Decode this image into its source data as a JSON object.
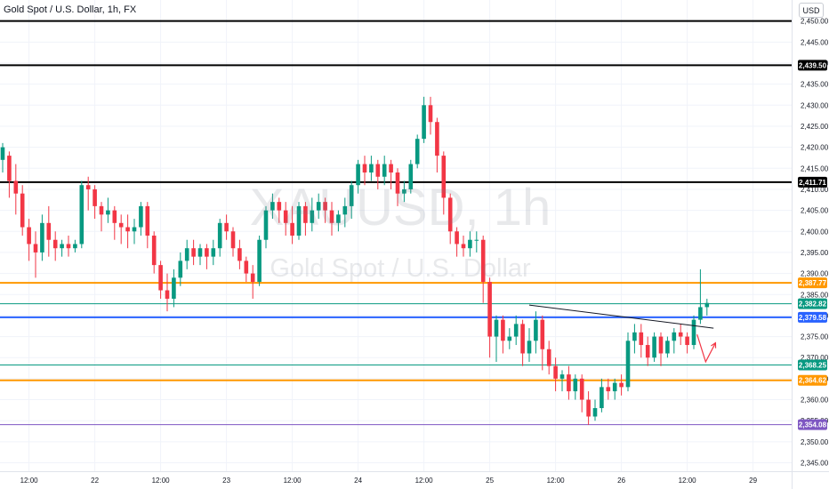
{
  "header": {
    "title": "Gold Spot / U.S. Dollar, 1h, FX"
  },
  "currency_label": "USD",
  "watermark": {
    "symbol": "XAUUSD, 1h",
    "name": "Gold Spot / U.S. Dollar"
  },
  "colors": {
    "up": "#089981",
    "down": "#f23645",
    "grid": "#f0f3fa",
    "axis_text": "#131722"
  },
  "chart_data": {
    "type": "candlestick",
    "title": "Gold Spot / U.S. Dollar, 1h, FX",
    "ylim": [
      2343,
      2455
    ],
    "y_ticks": [
      "2,345.00",
      "2,350.00",
      "2,355.00",
      "2,360.00",
      "2,365.00",
      "2,370.00",
      "2,375.00",
      "2,380.00",
      "2,385.00",
      "2,390.00",
      "2,395.00",
      "2,400.00",
      "2,405.00",
      "2,410.00",
      "2,415.00",
      "2,420.00",
      "2,425.00",
      "2,430.00",
      "2,435.00",
      "2,440.00",
      "2,445.00",
      "2,450.00"
    ],
    "x_ticks": [
      {
        "label": "12:00",
        "index": 4
      },
      {
        "label": "22",
        "index": 14
      },
      {
        "label": "12:00",
        "index": 24
      },
      {
        "label": "23",
        "index": 34
      },
      {
        "label": "12:00",
        "index": 44
      },
      {
        "label": "24",
        "index": 54
      },
      {
        "label": "12:00",
        "index": 64
      },
      {
        "label": "25",
        "index": 74
      },
      {
        "label": "12:00",
        "index": 84
      },
      {
        "label": "26",
        "index": 94
      },
      {
        "label": "12:00",
        "index": 104
      },
      {
        "label": "29",
        "index": 114
      }
    ],
    "candles": [
      [
        2417,
        2420,
        2414,
        2421
      ],
      [
        2418,
        2412,
        2408,
        2419
      ],
      [
        2412,
        2409,
        2404,
        2416
      ],
      [
        2409,
        2401,
        2399,
        2411
      ],
      [
        2401,
        2397,
        2393,
        2403
      ],
      [
        2397,
        2395,
        2389,
        2400
      ],
      [
        2395,
        2402,
        2393,
        2404
      ],
      [
        2402,
        2398,
        2394,
        2406
      ],
      [
        2398,
        2396,
        2393,
        2400
      ],
      [
        2396,
        2397,
        2394,
        2398
      ],
      [
        2397,
        2396,
        2394,
        2399
      ],
      [
        2396,
        2397,
        2395,
        2398
      ],
      [
        2397,
        2411,
        2396,
        2412
      ],
      [
        2411,
        2410,
        2405,
        2413
      ],
      [
        2410,
        2406,
        2403,
        2411
      ],
      [
        2406,
        2404,
        2400,
        2407
      ],
      [
        2404,
        2405,
        2402,
        2408
      ],
      [
        2405,
        2402,
        2398,
        2406
      ],
      [
        2402,
        2401,
        2397,
        2404
      ],
      [
        2401,
        2400,
        2396,
        2404
      ],
      [
        2400,
        2401,
        2397,
        2403
      ],
      [
        2401,
        2406,
        2399,
        2407
      ],
      [
        2406,
        2399,
        2396,
        2407
      ],
      [
        2399,
        2392,
        2390,
        2400
      ],
      [
        2392,
        2386,
        2384,
        2393
      ],
      [
        2386,
        2384,
        2381,
        2390
      ],
      [
        2384,
        2389,
        2382,
        2391
      ],
      [
        2389,
        2393,
        2387,
        2395
      ],
      [
        2393,
        2396,
        2391,
        2398
      ],
      [
        2396,
        2394,
        2392,
        2398
      ],
      [
        2394,
        2396,
        2392,
        2397
      ],
      [
        2396,
        2394,
        2391,
        2397
      ],
      [
        2394,
        2396,
        2392,
        2398
      ],
      [
        2396,
        2402,
        2394,
        2403
      ],
      [
        2402,
        2400,
        2398,
        2404
      ],
      [
        2400,
        2396,
        2394,
        2401
      ],
      [
        2396,
        2393,
        2391,
        2398
      ],
      [
        2393,
        2390,
        2388,
        2394
      ],
      [
        2390,
        2388,
        2384,
        2392
      ],
      [
        2388,
        2398,
        2387,
        2399
      ],
      [
        2398,
        2405,
        2396,
        2406
      ],
      [
        2405,
        2407,
        2403,
        2409
      ],
      [
        2407,
        2405,
        2402,
        2408
      ],
      [
        2405,
        2402,
        2399,
        2407
      ],
      [
        2402,
        2399,
        2397,
        2406
      ],
      [
        2399,
        2406,
        2398,
        2407
      ],
      [
        2406,
        2402,
        2399,
        2407
      ],
      [
        2402,
        2405,
        2400,
        2408
      ],
      [
        2405,
        2407,
        2403,
        2409
      ],
      [
        2407,
        2405,
        2402,
        2408
      ],
      [
        2405,
        2402,
        2399,
        2407
      ],
      [
        2402,
        2404,
        2400,
        2405
      ],
      [
        2404,
        2406,
        2401,
        2408
      ],
      [
        2406,
        2411,
        2403,
        2412
      ],
      [
        2411,
        2416,
        2409,
        2417
      ],
      [
        2416,
        2414,
        2411,
        2418
      ],
      [
        2414,
        2416,
        2412,
        2418
      ],
      [
        2416,
        2413,
        2410,
        2417
      ],
      [
        2413,
        2416,
        2411,
        2418
      ],
      [
        2416,
        2414,
        2410,
        2417
      ],
      [
        2414,
        2409,
        2406,
        2415
      ],
      [
        2409,
        2410,
        2407,
        2412
      ],
      [
        2410,
        2416,
        2409,
        2417
      ],
      [
        2416,
        2422,
        2415,
        2423
      ],
      [
        2422,
        2430,
        2421,
        2432
      ],
      [
        2430,
        2426,
        2423,
        2432
      ],
      [
        2426,
        2418,
        2414,
        2427
      ],
      [
        2418,
        2408,
        2404,
        2419
      ],
      [
        2408,
        2400,
        2397,
        2409
      ],
      [
        2400,
        2397,
        2394,
        2401
      ],
      [
        2397,
        2396,
        2394,
        2399
      ],
      [
        2396,
        2398,
        2394,
        2400
      ],
      [
        2398,
        2398,
        2395,
        2400
      ],
      [
        2398,
        2388,
        2383,
        2399
      ],
      [
        2388,
        2375,
        2370,
        2389
      ],
      [
        2375,
        2379,
        2369,
        2380
      ],
      [
        2379,
        2374,
        2371,
        2380
      ],
      [
        2374,
        2375,
        2372,
        2377
      ],
      [
        2375,
        2378,
        2373,
        2380
      ],
      [
        2378,
        2371,
        2368,
        2379
      ],
      [
        2371,
        2374,
        2369,
        2377
      ],
      [
        2374,
        2379,
        2371,
        2381
      ],
      [
        2379,
        2372,
        2367,
        2380
      ],
      [
        2372,
        2368,
        2366,
        2374
      ],
      [
        2368,
        2365,
        2362,
        2370
      ],
      [
        2365,
        2366,
        2362,
        2367
      ],
      [
        2366,
        2362,
        2360,
        2368
      ],
      [
        2362,
        2365,
        2360,
        2366
      ],
      [
        2365,
        2360,
        2357,
        2366
      ],
      [
        2360,
        2356,
        2354,
        2362
      ],
      [
        2356,
        2358,
        2355,
        2360
      ],
      [
        2358,
        2363,
        2357,
        2365
      ],
      [
        2363,
        2362,
        2360,
        2365
      ],
      [
        2362,
        2364,
        2360,
        2365
      ],
      [
        2364,
        2363,
        2361,
        2366
      ],
      [
        2363,
        2374,
        2362,
        2376
      ],
      [
        2374,
        2376,
        2371,
        2378
      ],
      [
        2376,
        2373,
        2370,
        2378
      ],
      [
        2373,
        2370,
        2368,
        2375
      ],
      [
        2370,
        2375,
        2369,
        2376
      ],
      [
        2375,
        2371,
        2368,
        2376
      ],
      [
        2371,
        2374,
        2370,
        2375
      ],
      [
        2374,
        2376,
        2371,
        2377
      ],
      [
        2376,
        2375,
        2373,
        2378
      ],
      [
        2375,
        2373,
        2371,
        2376
      ],
      [
        2373,
        2379,
        2372,
        2380
      ],
      [
        2379,
        2382,
        2378,
        2391
      ],
      [
        2382,
        2383,
        2380,
        2384
      ]
    ],
    "horizontal_levels": [
      {
        "price": 2450.0,
        "color": "#000000",
        "label": ""
      },
      {
        "price": 2439.5,
        "color": "#000000",
        "label": "2,439.50"
      },
      {
        "price": 2411.71,
        "color": "#000000",
        "label": "2,411.71"
      },
      {
        "price": 2387.77,
        "color": "#ff9800",
        "label": "2,387.77"
      },
      {
        "price": 2382.82,
        "color": "#089981",
        "label": "2,382.82"
      },
      {
        "price": 2379.58,
        "color": "#2962ff",
        "label": "2,379.58"
      },
      {
        "price": 2368.25,
        "color": "#089981",
        "label": "2,368.25"
      },
      {
        "price": 2364.62,
        "color": "#ff9800",
        "label": "2,364.62"
      },
      {
        "price": 2354.08,
        "color": "#7e57c2",
        "label": "2,354.08"
      }
    ],
    "trendline": {
      "from": [
        80,
        2382.5
      ],
      "to": [
        108,
        2377
      ]
    },
    "arrow": {
      "points": [
        [
          105.5,
          2375.5
        ],
        [
          106.8,
          2369
        ],
        [
          108.3,
          2373.5
        ]
      ],
      "color": "#f23645"
    },
    "grid": true
  }
}
